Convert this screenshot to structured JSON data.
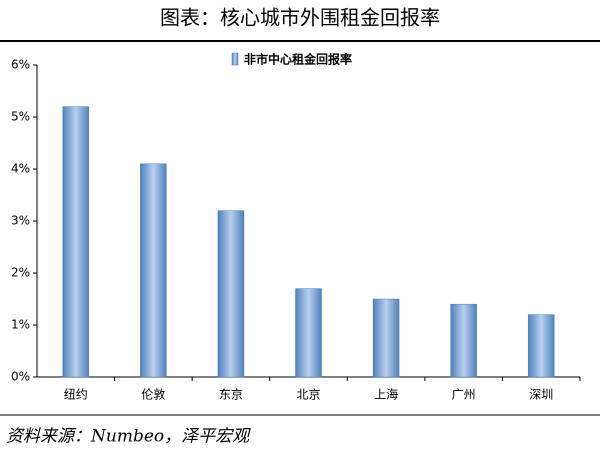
{
  "chart_data": {
    "type": "bar",
    "title": "图表：核心城市外围租金回报率",
    "source": "资料来源：Numbeo，泽平宏观",
    "categories": [
      "纽约",
      "伦敦",
      "东京",
      "北京",
      "上海",
      "广州",
      "深圳"
    ],
    "series": [
      {
        "name": "非市中心租金回报率",
        "color": "#4f81bd",
        "values": [
          5.2,
          4.1,
          3.2,
          1.7,
          1.5,
          1.4,
          1.2
        ]
      }
    ],
    "ylim": [
      0,
      6
    ],
    "yticks": [
      {
        "value": 0,
        "label": "0%"
      },
      {
        "value": 1,
        "label": "1%"
      },
      {
        "value": 2,
        "label": "2%"
      },
      {
        "value": 3,
        "label": "3%"
      },
      {
        "value": 4,
        "label": "4%"
      },
      {
        "value": 5,
        "label": "5%"
      },
      {
        "value": 6,
        "label": "6%"
      }
    ],
    "grid": false
  }
}
